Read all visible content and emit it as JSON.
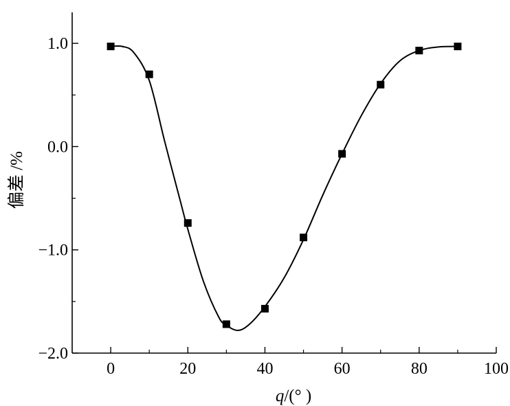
{
  "chart_data": {
    "type": "scatter",
    "xlabel": "q/(°  )",
    "ylabel": "偏差 /%",
    "xlim": [
      -10,
      100
    ],
    "ylim": [
      -2.0,
      1.3
    ],
    "xticks": [
      0,
      20,
      40,
      60,
      80,
      100
    ],
    "xtick_labels": [
      "0",
      "20",
      "40",
      "60",
      "80",
      "100"
    ],
    "yticks": [
      1.0,
      0.0,
      -1.0,
      -2.0
    ],
    "ytick_labels": [
      "1.0",
      "0.0",
      "−1.0",
      "−2.0"
    ],
    "y_minor_ticks": [
      0.5,
      -0.5,
      -1.5
    ],
    "grid": false,
    "series": [
      {
        "marker": "square",
        "x": [
          0,
          10,
          20,
          30,
          40,
          50,
          60,
          70,
          80,
          90
        ],
        "values": [
          0.97,
          0.7,
          -0.74,
          -1.72,
          -1.57,
          -0.88,
          -0.07,
          0.6,
          0.93,
          0.97
        ]
      }
    ],
    "fit_curve": {
      "x": [
        0,
        3,
        6,
        10,
        14,
        18,
        20,
        24,
        28,
        30,
        33,
        36,
        40,
        45,
        50,
        55,
        60,
        65,
        70,
        75,
        80,
        85,
        90
      ],
      "values": [
        0.97,
        0.97,
        0.91,
        0.64,
        0.05,
        -0.52,
        -0.8,
        -1.3,
        -1.65,
        -1.73,
        -1.78,
        -1.72,
        -1.55,
        -1.27,
        -0.9,
        -0.47,
        -0.07,
        0.3,
        0.61,
        0.83,
        0.93,
        0.965,
        0.97
      ]
    },
    "colors": {
      "line": "#000000",
      "marker": "#000000"
    }
  }
}
